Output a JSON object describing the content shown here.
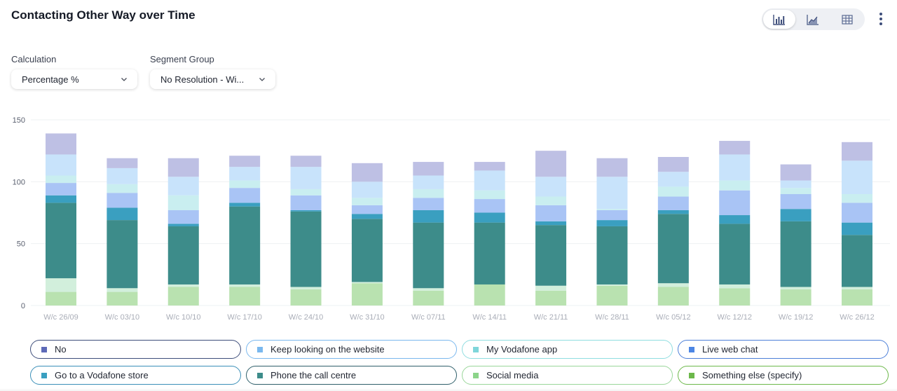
{
  "header": {
    "title": "Contacting Other Way over Time",
    "view_options": [
      {
        "name": "bar-chart-icon",
        "active": true
      },
      {
        "name": "area-chart-icon",
        "active": false
      },
      {
        "name": "table-icon",
        "active": false
      }
    ],
    "more_menu": "kebab-menu-icon"
  },
  "controls": {
    "calculation": {
      "label": "Calculation",
      "value": "Percentage %"
    },
    "segment_group": {
      "label": "Segment Group",
      "value": "No Resolution - Wi..."
    }
  },
  "colors": {
    "accent": "#3d4d7a",
    "gridline": "#eef0f3",
    "axis_text": "#5b6170",
    "category_text": "#a9adb7"
  },
  "chart_data": {
    "type": "bar",
    "stacked": true,
    "categories": [
      "W/c 26/09",
      "W/c 03/10",
      "W/c 10/10",
      "W/c 17/10",
      "W/c 24/10",
      "W/c 31/10",
      "W/c 07/11",
      "W/c 14/11",
      "W/c 21/11",
      "W/c 28/11",
      "W/c 05/12",
      "W/c 12/12",
      "W/c 19/12",
      "W/c 26/12"
    ],
    "ylim": [
      0,
      150
    ],
    "yticks": [
      0,
      50,
      100,
      150
    ],
    "grid": true,
    "legend_position": "bottom",
    "series": [
      {
        "name": "Social media",
        "color": "#b9e2b0",
        "values": [
          11,
          11,
          15,
          15,
          13,
          18,
          12,
          17,
          12,
          16,
          15,
          14,
          13,
          13
        ]
      },
      {
        "name": "Something else (specify)",
        "color": "#d2efdc",
        "values": [
          11,
          3,
          2,
          2,
          2,
          1,
          2,
          0,
          4,
          1,
          3,
          3,
          2,
          2
        ]
      },
      {
        "name": "Phone the call centre",
        "color": "#3d8c8a",
        "values": [
          61,
          55,
          47,
          63,
          61,
          51,
          53,
          50,
          49,
          47,
          56,
          49,
          53,
          42
        ]
      },
      {
        "name": "Go to a Vodafone store",
        "color": "#3a9fc0",
        "values": [
          6,
          10,
          2,
          3,
          1,
          4,
          10,
          8,
          3,
          5,
          3,
          7,
          10,
          10
        ]
      },
      {
        "name": "Live web chat",
        "color": "#a9c4f5",
        "values": [
          10,
          12,
          11,
          12,
          12,
          7,
          10,
          11,
          13,
          8,
          11,
          20,
          12,
          16
        ]
      },
      {
        "name": "My Vodafone app",
        "color": "#c9eef0",
        "values": [
          6,
          7,
          12,
          6,
          5,
          6,
          7,
          7,
          7,
          1,
          8,
          8,
          5,
          7
        ]
      },
      {
        "name": "Keep looking on the website",
        "color": "#c8e3fb",
        "values": [
          17,
          13,
          15,
          11,
          18,
          13,
          11,
          16,
          16,
          26,
          12,
          21,
          6,
          27
        ]
      },
      {
        "name": "No",
        "color": "#bec0e4",
        "values": [
          17,
          8,
          15,
          9,
          9,
          15,
          11,
          7,
          21,
          15,
          12,
          11,
          13,
          15
        ]
      }
    ],
    "legend": [
      {
        "name": "No",
        "color": "#5d6ab8",
        "border": "#3d4d7a"
      },
      {
        "name": "Keep looking on the website",
        "color": "#7ab8ee",
        "border": "#7ab8ee"
      },
      {
        "name": "My Vodafone app",
        "color": "#7fd6da",
        "border": "#8fdde0"
      },
      {
        "name": "Live web chat",
        "color": "#4c86e4",
        "border": "#4c7fd8"
      },
      {
        "name": "Go to a Vodafone store",
        "color": "#3a9fc0",
        "border": "#3a8fb8"
      },
      {
        "name": "Phone the call centre",
        "color": "#3d8c8a",
        "border": "#2f5f6a"
      },
      {
        "name": "Social media",
        "color": "#8cd48a",
        "border": "#9ad69a"
      },
      {
        "name": "Something else (specify)",
        "color": "#6cb84a",
        "border": "#6cb84a"
      }
    ]
  }
}
